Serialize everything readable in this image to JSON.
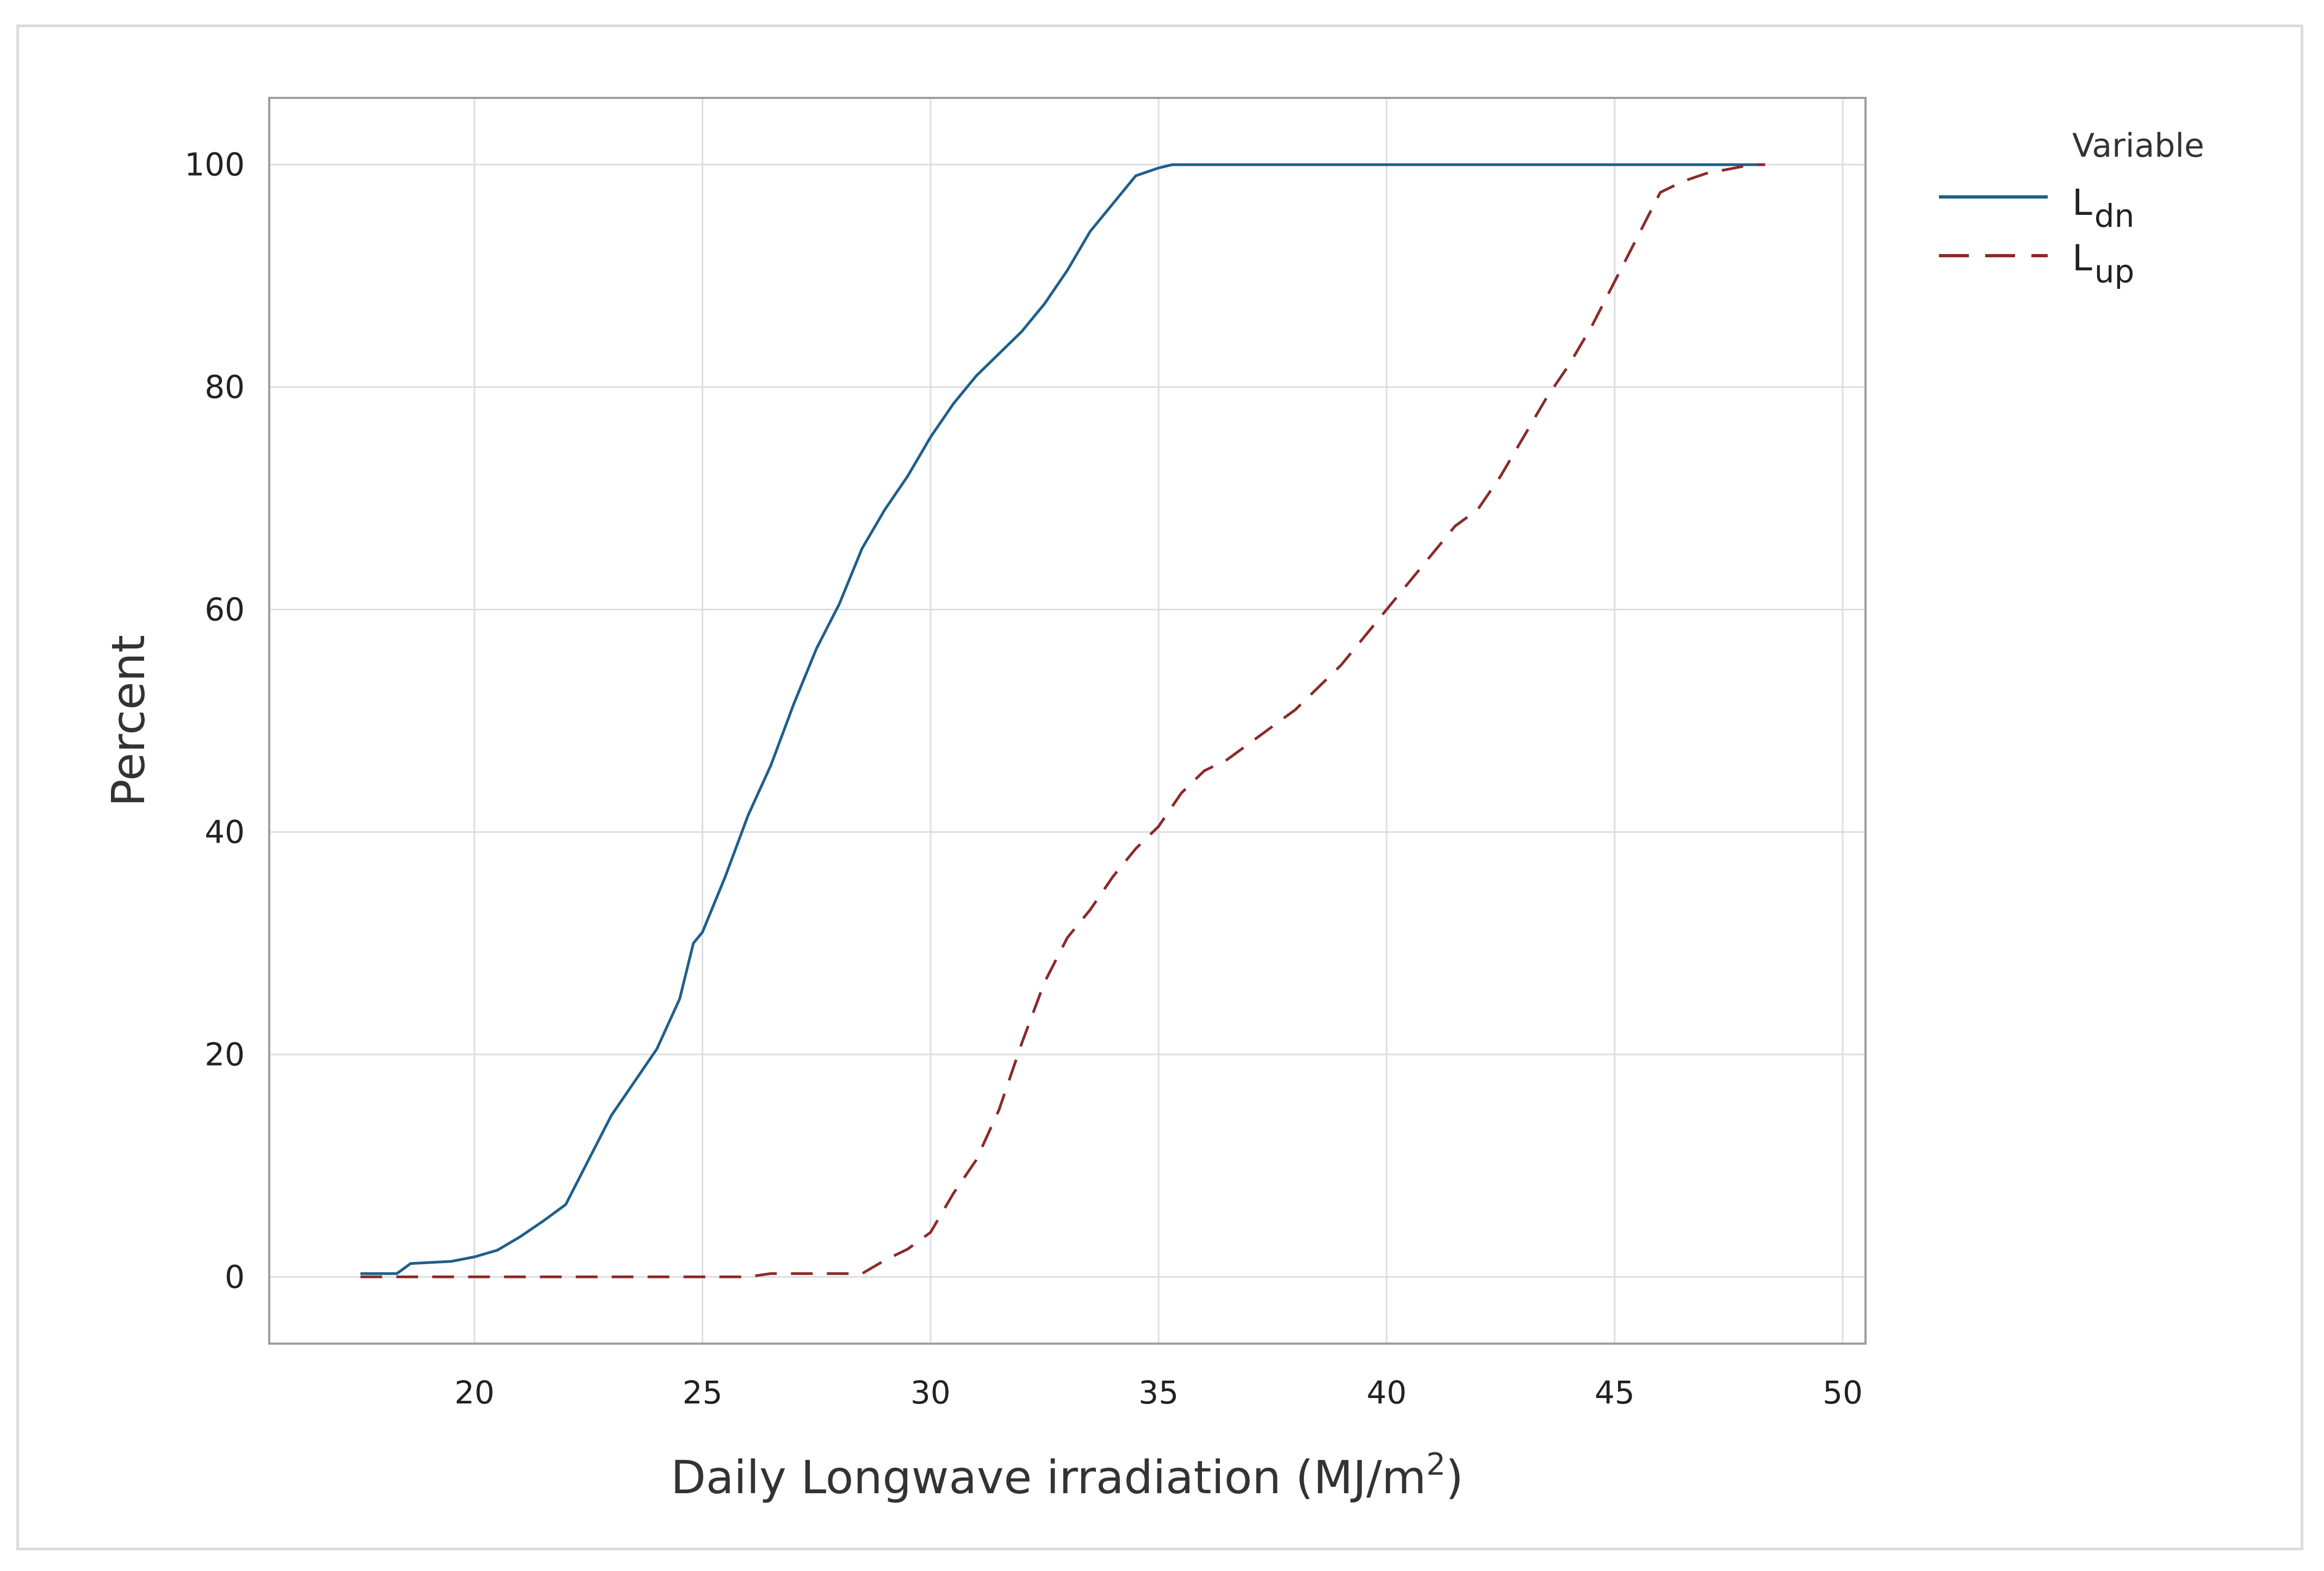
{
  "chart_data": {
    "type": "line",
    "subtype": "empirical-cdf",
    "title": "",
    "xlabel": "Daily Longwave irradiation (MJ/m",
    "xlabel_superscript": "2",
    "xlabel_suffix": ")",
    "ylabel": "Percent",
    "xlim": [
      15.5,
      50.5
    ],
    "ylim": [
      -6,
      106
    ],
    "xticks": [
      20,
      25,
      30,
      35,
      40,
      45,
      50
    ],
    "yticks": [
      0,
      20,
      40,
      60,
      80,
      100
    ],
    "grid": true,
    "legend": {
      "title": "Variable",
      "position": "right-outside",
      "entries": [
        {
          "base": "L",
          "sub": "dn"
        },
        {
          "base": "L",
          "sub": "up"
        }
      ]
    },
    "series": [
      {
        "name": "Ldn",
        "color": "#1f5f8b",
        "dash": "solid",
        "x": [
          17.5,
          18.3,
          18.6,
          19.5,
          20.0,
          20.5,
          21.0,
          21.5,
          22.0,
          22.5,
          23.0,
          23.5,
          24.0,
          24.5,
          24.8,
          25.0,
          25.5,
          26.0,
          26.5,
          27.0,
          27.5,
          28.0,
          28.5,
          29.0,
          29.5,
          30.0,
          30.5,
          31.0,
          31.5,
          32.0,
          32.5,
          33.0,
          33.5,
          34.0,
          34.5,
          35.0,
          35.3,
          36.0,
          40.0,
          45.0,
          48.3
        ],
        "values": [
          0.3,
          0.3,
          1.2,
          1.4,
          1.8,
          2.4,
          3.6,
          5.0,
          6.5,
          10.5,
          14.5,
          17.5,
          20.5,
          25.0,
          30.0,
          31.0,
          36.0,
          41.5,
          46.0,
          51.5,
          56.5,
          60.5,
          65.5,
          69.0,
          72.0,
          75.5,
          78.5,
          81.0,
          83.0,
          85.0,
          87.5,
          90.5,
          94.0,
          96.5,
          99.0,
          99.7,
          100.0,
          100.0,
          100.0,
          100.0,
          100.0
        ]
      },
      {
        "name": "Lup",
        "color": "#8b2a2a",
        "dash": "dashed",
        "x": [
          17.5,
          20.0,
          22.0,
          25.0,
          26.0,
          26.5,
          28.5,
          29.0,
          29.5,
          30.0,
          30.5,
          31.0,
          31.5,
          32.0,
          32.5,
          33.0,
          33.5,
          34.0,
          34.5,
          35.0,
          35.5,
          36.0,
          36.5,
          37.0,
          37.5,
          38.0,
          38.5,
          39.0,
          39.5,
          40.0,
          40.5,
          41.0,
          41.5,
          42.0,
          42.5,
          43.0,
          43.5,
          44.0,
          44.5,
          45.0,
          45.5,
          46.0,
          46.5,
          47.0,
          47.5,
          48.0,
          48.3
        ],
        "values": [
          0.0,
          0.0,
          0.0,
          0.0,
          0.0,
          0.3,
          0.3,
          1.5,
          2.5,
          4.0,
          7.5,
          10.5,
          15.0,
          21.0,
          26.5,
          30.5,
          33.0,
          36.0,
          38.5,
          40.5,
          43.5,
          45.5,
          46.5,
          48.0,
          49.5,
          51.0,
          53.0,
          55.0,
          57.5,
          60.0,
          62.5,
          65.0,
          67.5,
          69.0,
          72.0,
          75.5,
          79.0,
          82.0,
          85.5,
          89.5,
          93.5,
          97.5,
          98.5,
          99.2,
          99.6,
          100.0,
          100.0
        ]
      }
    ]
  }
}
